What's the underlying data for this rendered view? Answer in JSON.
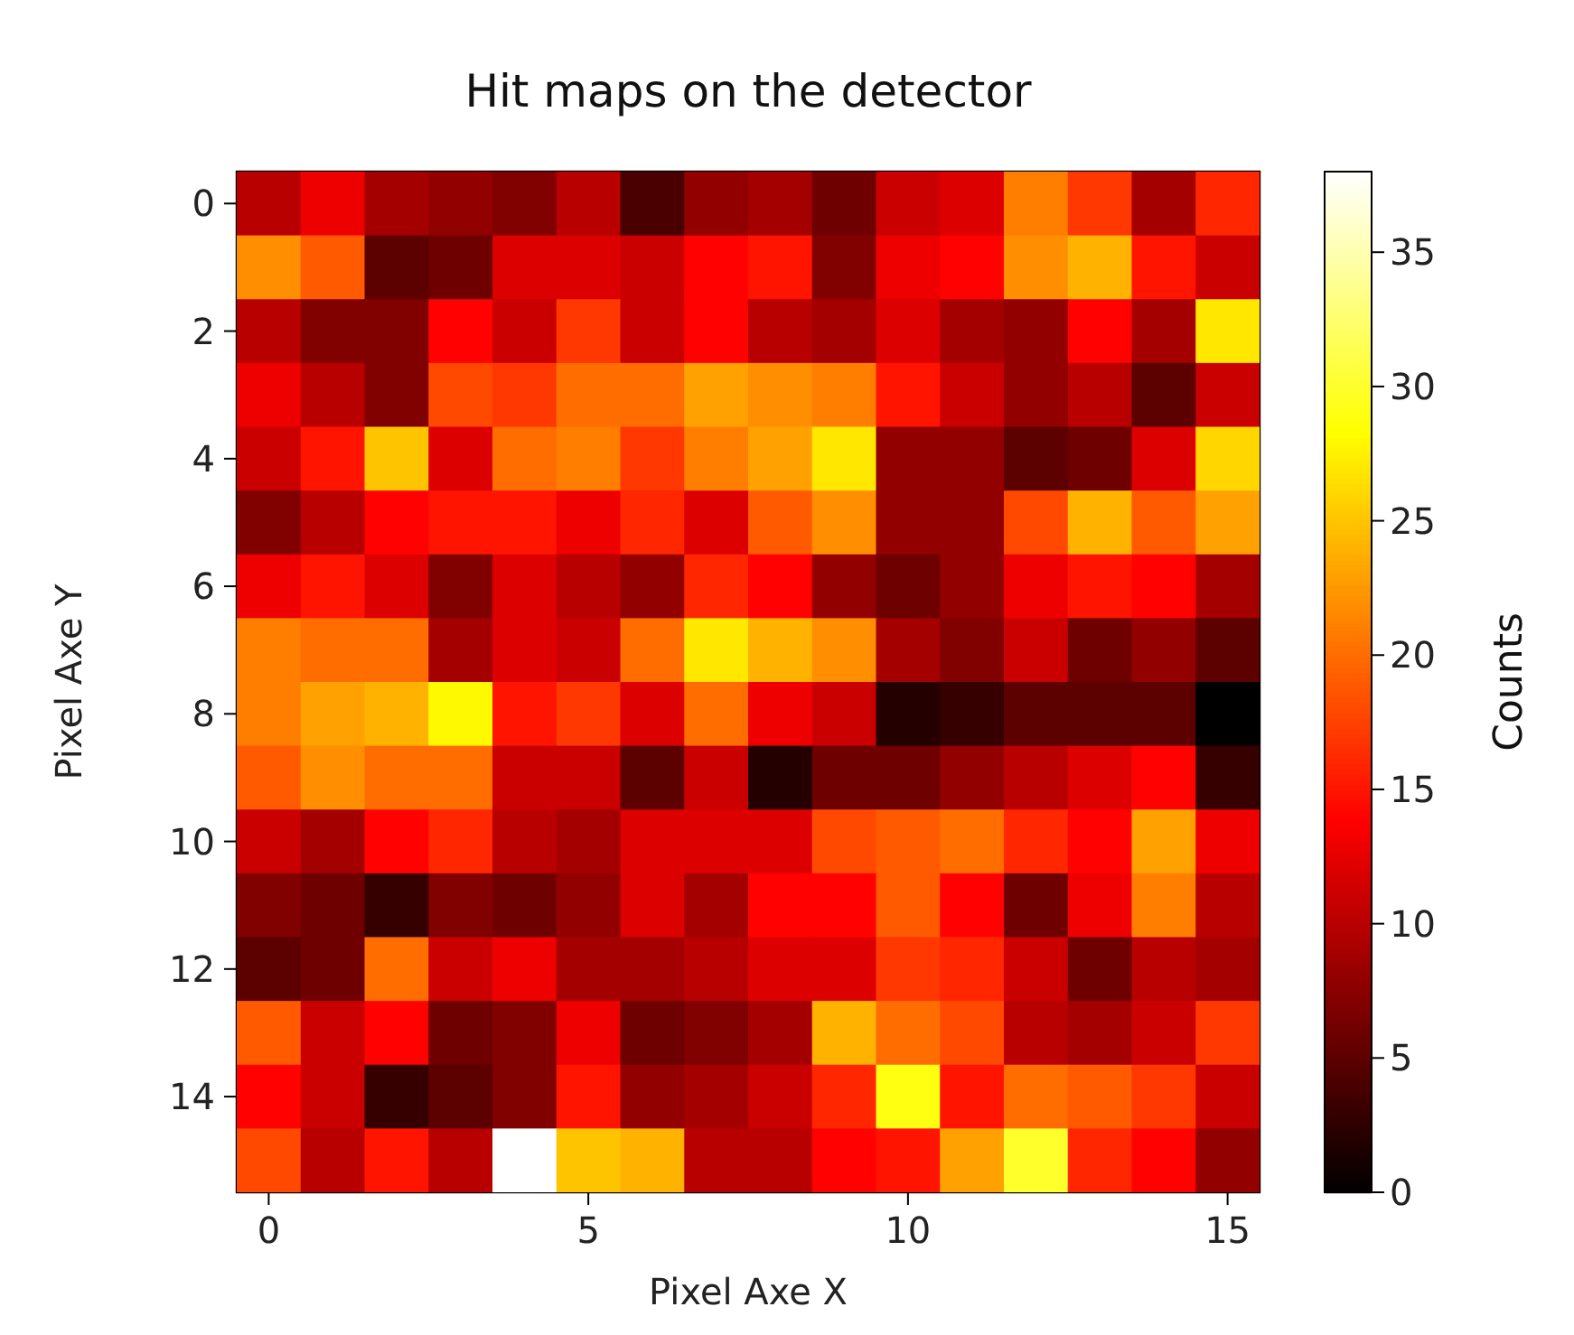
{
  "chart_data": {
    "type": "heatmap",
    "title": "Hit maps on the detector",
    "xlabel": "Pixel Axe X",
    "ylabel": "Pixel Axe Y",
    "clabel": "Counts",
    "categories": [
      "0",
      null,
      null,
      null,
      null,
      "5",
      null,
      null,
      null,
      null,
      "10",
      null,
      null,
      null,
      null,
      "15"
    ],
    "y_categories": [
      "0",
      null,
      "2",
      null,
      "4",
      null,
      "6",
      null,
      "8",
      null,
      "10",
      null,
      "12",
      null,
      "14",
      null
    ],
    "cells": [
      [
        10,
        13,
        9,
        8,
        7,
        10,
        4,
        8,
        9,
        6,
        11,
        12,
        21,
        17,
        9,
        16
      ],
      [
        22,
        19,
        5,
        6,
        12,
        12,
        11,
        14,
        15,
        7,
        13,
        14,
        22,
        24,
        15,
        11
      ],
      [
        10,
        7,
        7,
        14,
        11,
        17,
        11,
        14,
        10,
        9,
        12,
        9,
        8,
        14,
        9,
        27
      ],
      [
        13,
        10,
        7,
        18,
        17,
        20,
        20,
        23,
        22,
        21,
        15,
        11,
        8,
        10,
        5,
        11
      ],
      [
        11,
        15,
        25,
        12,
        20,
        21,
        17,
        21,
        23,
        27,
        8,
        8,
        5,
        6,
        12,
        26
      ],
      [
        7,
        10,
        14,
        15,
        15,
        13,
        16,
        12,
        19,
        22,
        8,
        8,
        18,
        24,
        19,
        23
      ],
      [
        13,
        15,
        12,
        7,
        12,
        10,
        8,
        16,
        14,
        8,
        6,
        8,
        13,
        15,
        14,
        9
      ],
      [
        21,
        20,
        20,
        9,
        12,
        11,
        20,
        27,
        24,
        22,
        9,
        7,
        11,
        6,
        8,
        5
      ],
      [
        21,
        23,
        24,
        28,
        15,
        17,
        12,
        20,
        13,
        11,
        2,
        3,
        5,
        5,
        5,
        0
      ],
      [
        19,
        22,
        20,
        20,
        11,
        11,
        5,
        11,
        2,
        6,
        6,
        8,
        10,
        12,
        14,
        3
      ],
      [
        11,
        9,
        14,
        16,
        10,
        9,
        12,
        12,
        12,
        18,
        19,
        20,
        16,
        14,
        23,
        13
      ],
      [
        7,
        6,
        3,
        7,
        6,
        8,
        12,
        9,
        14,
        14,
        19,
        14,
        6,
        13,
        21,
        10
      ],
      [
        5,
        6,
        20,
        11,
        13,
        9,
        9,
        10,
        12,
        12,
        17,
        16,
        11,
        6,
        10,
        9
      ],
      [
        19,
        11,
        14,
        6,
        7,
        13,
        6,
        7,
        9,
        24,
        20,
        18,
        10,
        9,
        11,
        17
      ],
      [
        14,
        11,
        3,
        5,
        7,
        15,
        8,
        9,
        11,
        16,
        29,
        15,
        20,
        19,
        17,
        11
      ],
      [
        18,
        10,
        15,
        10,
        38,
        25,
        24,
        10,
        10,
        14,
        15,
        23,
        30,
        16,
        14,
        8
      ]
    ],
    "clim": [
      0,
      38
    ],
    "cticks": [
      0,
      5,
      10,
      15,
      20,
      25,
      30,
      35
    ]
  }
}
